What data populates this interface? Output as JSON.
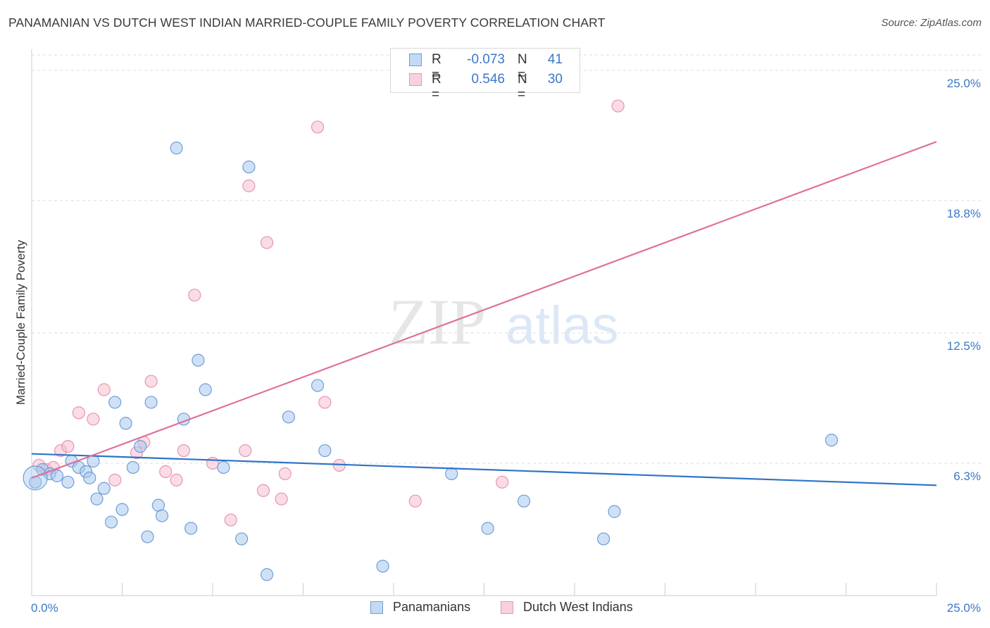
{
  "title": "PANAMANIAN VS DUTCH WEST INDIAN MARRIED-COUPLE FAMILY POVERTY CORRELATION CHART",
  "source": "Source: ZipAtlas.com",
  "watermark": {
    "zip": "ZIP",
    "atlas": "atlas"
  },
  "legend": {
    "rows": [
      {
        "r_label": "R =",
        "r_value": "-0.073",
        "n_label": "N =",
        "n_value": "41"
      },
      {
        "r_label": "R =",
        "r_value": "0.546",
        "n_label": "N =",
        "n_value": "30"
      }
    ]
  },
  "colors": {
    "blue_fill": "#a9c9ef",
    "blue_stroke": "#6c9fd8",
    "blue_line": "#2f73c9",
    "pink_fill": "#f5bfd0",
    "pink_stroke": "#e895b1",
    "pink_line": "#e0709a",
    "axis_text": "#3a78c8",
    "grid": "#dddddd"
  },
  "chart_data": {
    "type": "scatter",
    "title": "PANAMANIAN VS DUTCH WEST INDIAN MARRIED-COUPLE FAMILY POVERTY CORRELATION CHART",
    "xlabel": "",
    "ylabel": "Married-Couple Family Poverty",
    "xlim": [
      0,
      25
    ],
    "ylim": [
      0,
      26
    ],
    "x_tick_labels": [
      "0.0%",
      "25.0%"
    ],
    "y_ticks": [
      6.3,
      12.5,
      18.8,
      25.0
    ],
    "y_tick_labels": [
      "6.3%",
      "12.5%",
      "18.8%",
      "25.0%"
    ],
    "grid": true,
    "legend_position": "bottom",
    "series": [
      {
        "name": "Panamanians",
        "color": "#a9c9ef",
        "trend": {
          "x": [
            0,
            25
          ],
          "y": [
            6.75,
            5.25
          ]
        },
        "x": [
          0.1,
          0.3,
          0.5,
          0.7,
          1.0,
          1.1,
          1.3,
          1.5,
          1.6,
          1.7,
          1.8,
          2.0,
          2.2,
          2.3,
          2.5,
          2.6,
          2.8,
          3.0,
          3.2,
          3.3,
          3.5,
          3.6,
          4.0,
          4.2,
          4.4,
          4.6,
          4.8,
          5.3,
          5.8,
          6.0,
          6.5,
          7.1,
          7.9,
          8.1,
          9.7,
          11.6,
          12.6,
          13.6,
          15.8,
          16.1,
          22.1
        ],
        "y": [
          5.4,
          6.0,
          5.8,
          5.7,
          5.4,
          6.4,
          6.1,
          5.9,
          5.6,
          6.4,
          4.6,
          5.1,
          3.5,
          9.2,
          4.1,
          8.2,
          6.1,
          7.1,
          2.8,
          9.2,
          4.3,
          3.8,
          21.3,
          8.4,
          3.2,
          11.2,
          9.8,
          6.1,
          2.7,
          20.4,
          1.0,
          8.5,
          10.0,
          6.9,
          1.4,
          5.8,
          3.2,
          4.5,
          2.7,
          4.0,
          7.4
        ]
      },
      {
        "name": "Dutch West Indians",
        "color": "#f5bfd0",
        "trend": {
          "x": [
            0,
            25
          ],
          "y": [
            5.6,
            21.6
          ]
        },
        "x": [
          0.2,
          0.4,
          0.6,
          0.8,
          1.0,
          1.3,
          1.7,
          2.0,
          2.3,
          2.9,
          3.1,
          3.3,
          3.7,
          4.0,
          4.2,
          4.5,
          5.0,
          5.5,
          5.9,
          6.0,
          6.4,
          6.5,
          6.9,
          7.0,
          7.9,
          8.1,
          8.5,
          10.6,
          13.0,
          16.2
        ],
        "y": [
          6.2,
          6.0,
          6.1,
          6.9,
          7.1,
          8.7,
          8.4,
          9.8,
          5.5,
          6.8,
          7.3,
          10.2,
          5.9,
          5.5,
          6.9,
          14.3,
          6.3,
          3.6,
          6.9,
          19.5,
          5.0,
          16.8,
          4.6,
          5.8,
          22.3,
          9.2,
          6.2,
          4.5,
          5.4,
          23.3
        ]
      }
    ]
  },
  "bottom_legend": [
    {
      "label": "Panamanians"
    },
    {
      "label": "Dutch West Indians"
    }
  ]
}
